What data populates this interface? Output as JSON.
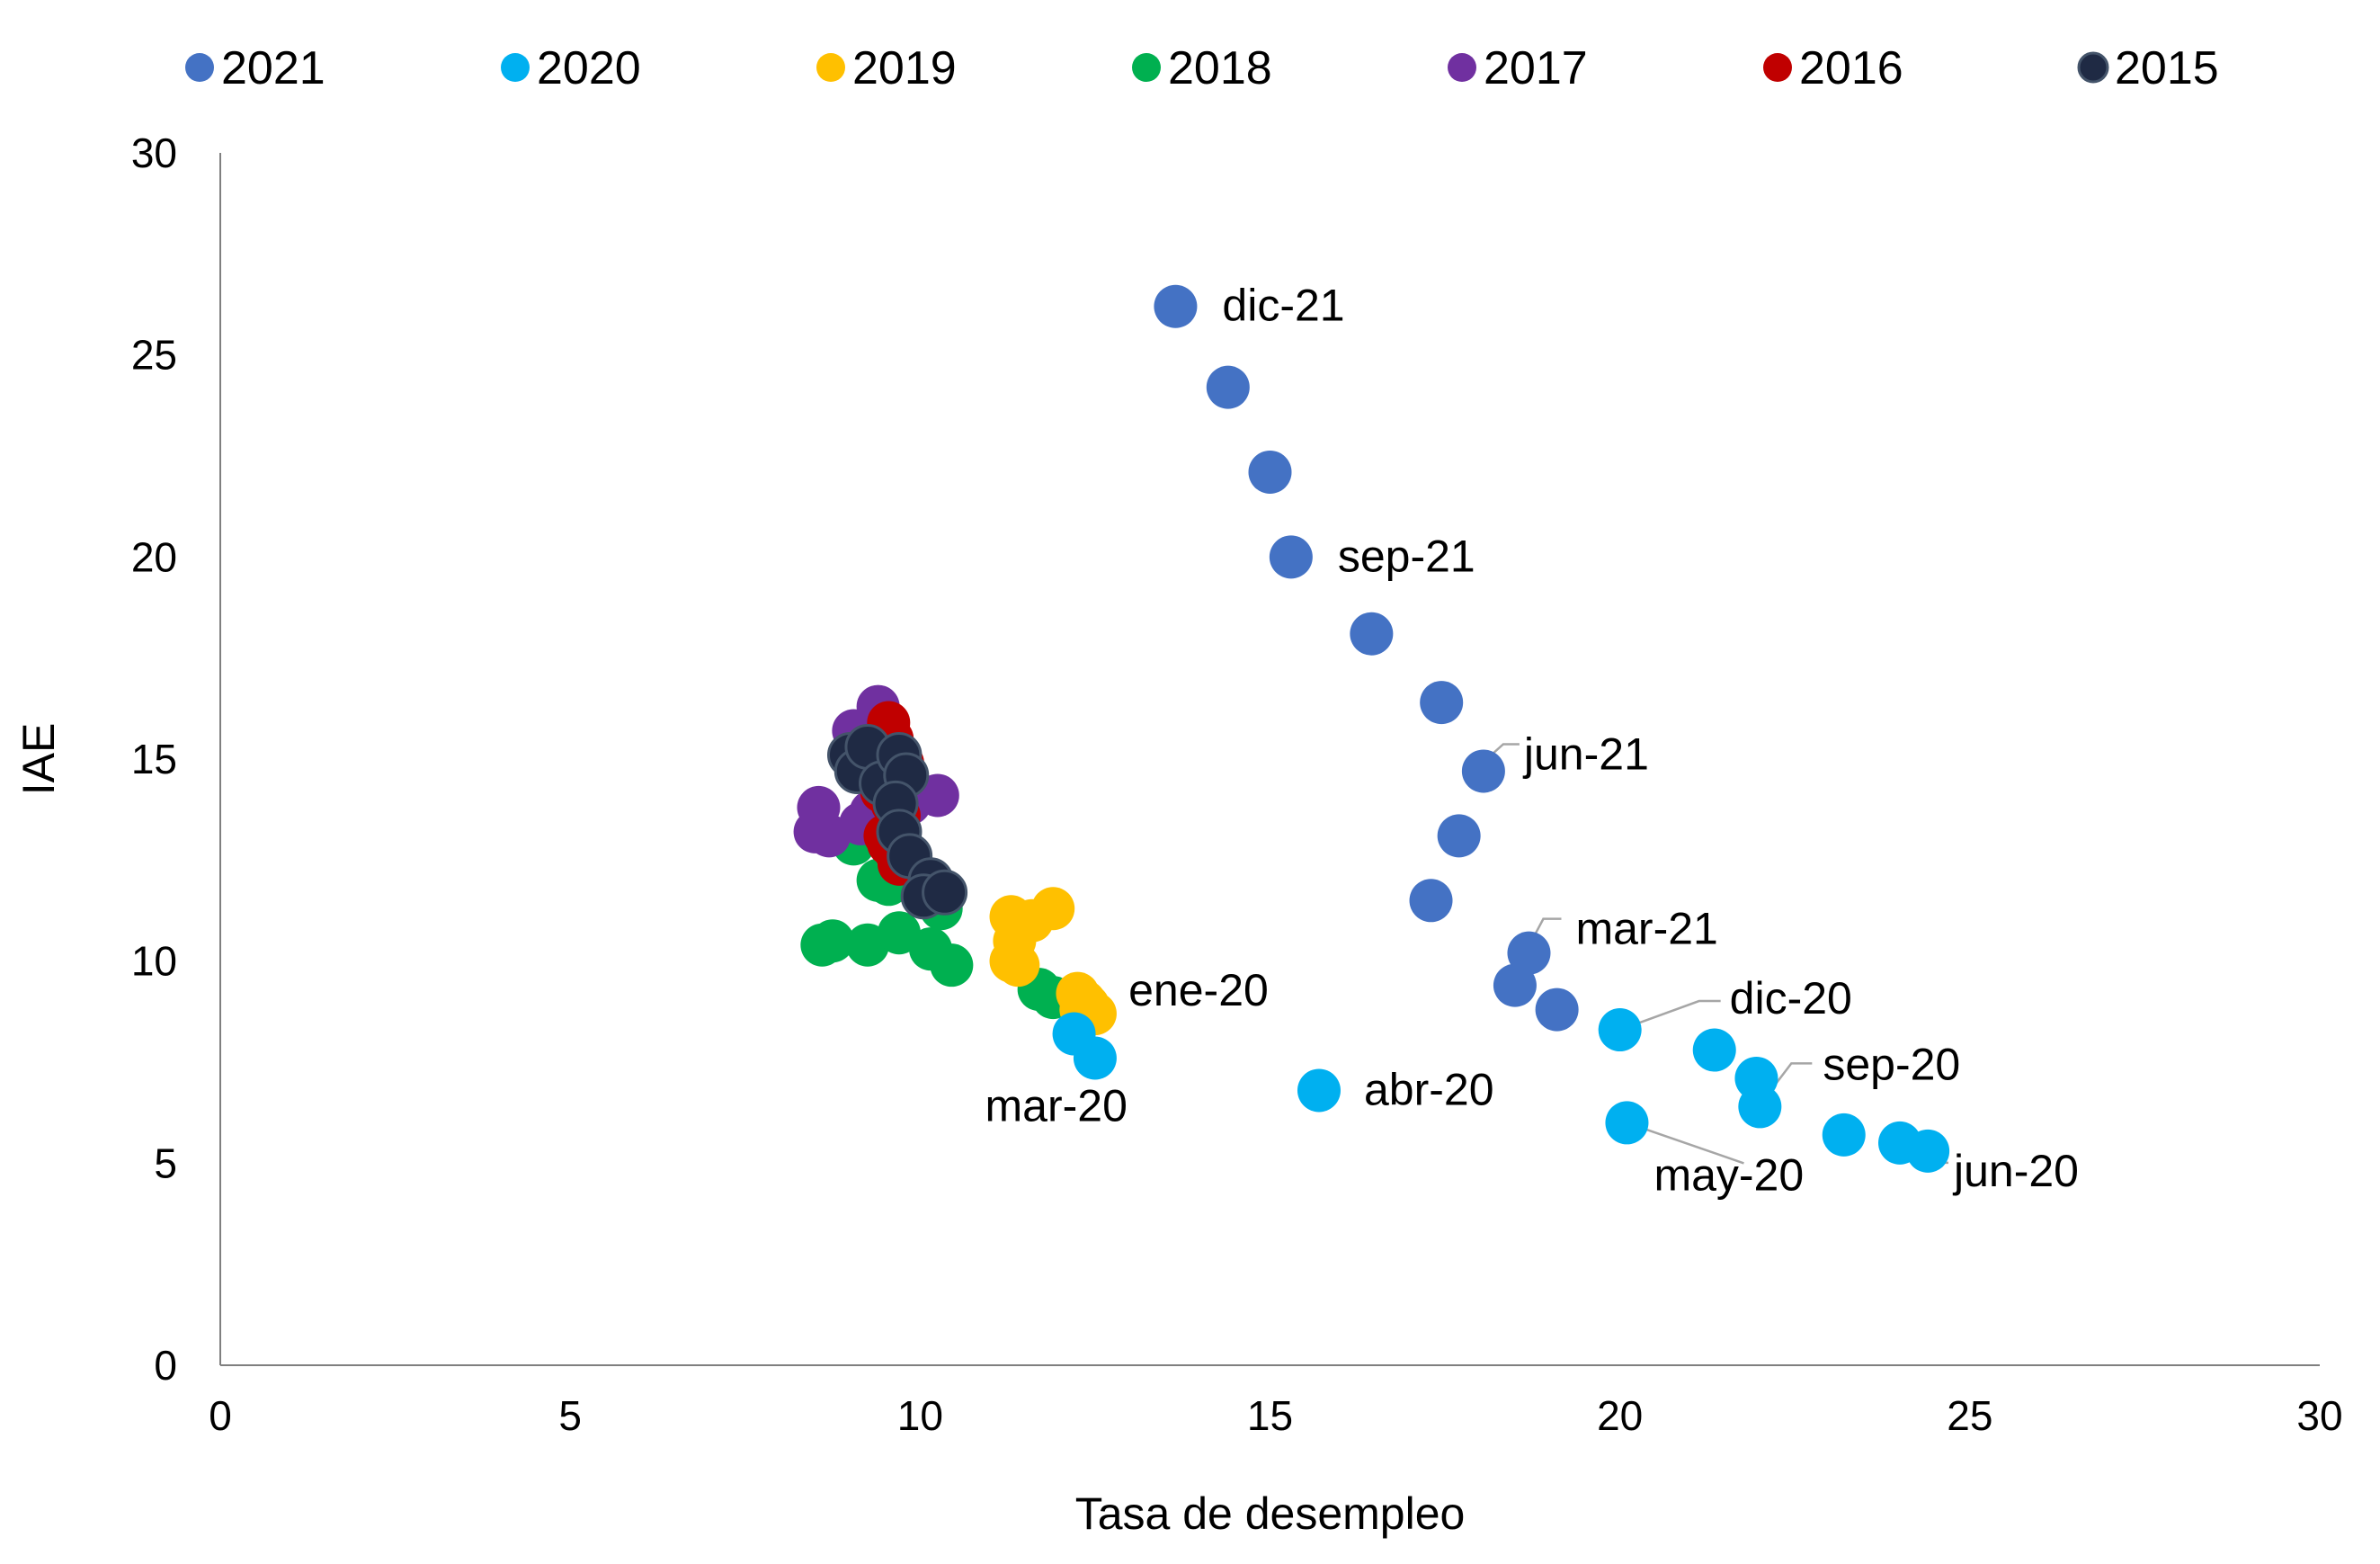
{
  "chart_data": {
    "type": "scatter",
    "xlabel": "Tasa de desempleo",
    "ylabel": "IAE",
    "xlim": [
      0,
      30
    ],
    "ylim": [
      0,
      30
    ],
    "x_ticks": [
      "0",
      "5",
      "10",
      "15",
      "20",
      "25",
      "30"
    ],
    "y_ticks": [
      "0",
      "5",
      "10",
      "15",
      "20",
      "25",
      "30"
    ],
    "grid": false,
    "legend_position": "top",
    "series": [
      {
        "name": "2021",
        "color": "#4472C4",
        "points": [
          {
            "x": 18.5,
            "y": 9.4
          },
          {
            "x": 18.7,
            "y": 10.2
          },
          {
            "x": 19.1,
            "y": 8.8
          },
          {
            "x": 17.3,
            "y": 11.5
          },
          {
            "x": 18.05,
            "y": 14.7
          },
          {
            "x": 17.7,
            "y": 13.1
          },
          {
            "x": 17.45,
            "y": 16.4
          },
          {
            "x": 16.45,
            "y": 18.1
          },
          {
            "x": 15.3,
            "y": 20.0
          },
          {
            "x": 15.0,
            "y": 22.1
          },
          {
            "x": 14.4,
            "y": 24.2
          },
          {
            "x": 13.65,
            "y": 26.2
          }
        ]
      },
      {
        "name": "2020",
        "color": "#00B0F0",
        "points": [
          {
            "x": 12.2,
            "y": 8.2
          },
          {
            "x": 12.5,
            "y": 7.6
          },
          {
            "x": 15.7,
            "y": 6.8
          },
          {
            "x": 20.1,
            "y": 6.0
          },
          {
            "x": 24.4,
            "y": 5.3
          },
          {
            "x": 24.0,
            "y": 5.5
          },
          {
            "x": 23.2,
            "y": 5.7
          },
          {
            "x": 22.0,
            "y": 6.4
          },
          {
            "x": 21.95,
            "y": 7.1
          },
          {
            "x": 21.35,
            "y": 7.8
          },
          {
            "x": 20.0,
            "y": 8.3
          }
        ]
      },
      {
        "name": "2019",
        "color": "#FFC000",
        "points": [
          {
            "x": 11.3,
            "y": 10.0
          },
          {
            "x": 11.4,
            "y": 9.9
          },
          {
            "x": 11.35,
            "y": 10.5
          },
          {
            "x": 11.3,
            "y": 11.1
          },
          {
            "x": 11.6,
            "y": 11.0
          },
          {
            "x": 11.9,
            "y": 11.3
          },
          {
            "x": 12.25,
            "y": 9.2
          },
          {
            "x": 12.4,
            "y": 8.9
          },
          {
            "x": 12.5,
            "y": 8.7
          },
          {
            "x": 12.3,
            "y": 8.8
          },
          {
            "x": 12.35,
            "y": 9.0
          }
        ]
      },
      {
        "name": "2018",
        "color": "#00B050",
        "points": [
          {
            "x": 8.75,
            "y": 10.5
          },
          {
            "x": 8.6,
            "y": 10.4
          },
          {
            "x": 9.25,
            "y": 10.4
          },
          {
            "x": 9.7,
            "y": 10.7
          },
          {
            "x": 10.15,
            "y": 10.3
          },
          {
            "x": 10.45,
            "y": 9.9
          },
          {
            "x": 11.7,
            "y": 9.3
          },
          {
            "x": 11.9,
            "y": 9.1
          },
          {
            "x": 9.05,
            "y": 12.9
          },
          {
            "x": 9.4,
            "y": 12.0
          },
          {
            "x": 10.3,
            "y": 11.3
          },
          {
            "x": 9.55,
            "y": 11.9
          }
        ]
      },
      {
        "name": "2017",
        "color": "#7030A0",
        "points": [
          {
            "x": 8.5,
            "y": 13.2
          },
          {
            "x": 8.7,
            "y": 13.1
          },
          {
            "x": 8.55,
            "y": 13.8
          },
          {
            "x": 9.05,
            "y": 15.7
          },
          {
            "x": 9.4,
            "y": 16.3
          },
          {
            "x": 10.25,
            "y": 14.1
          },
          {
            "x": 9.15,
            "y": 13.4
          },
          {
            "x": 9.6,
            "y": 14.5
          },
          {
            "x": 9.3,
            "y": 13.7
          },
          {
            "x": 9.5,
            "y": 15.1
          },
          {
            "x": 9.85,
            "y": 13.9
          },
          {
            "x": 9.2,
            "y": 14.9
          }
        ]
      },
      {
        "name": "2016",
        "color": "#C00000",
        "points": [
          {
            "x": 9.55,
            "y": 15.9
          },
          {
            "x": 9.6,
            "y": 15.5
          },
          {
            "x": 9.4,
            "y": 14.6
          },
          {
            "x": 9.5,
            "y": 13.1
          },
          {
            "x": 9.7,
            "y": 13.6
          },
          {
            "x": 9.65,
            "y": 12.7
          },
          {
            "x": 9.45,
            "y": 14.2
          },
          {
            "x": 9.55,
            "y": 12.9
          },
          {
            "x": 9.75,
            "y": 14.9
          },
          {
            "x": 9.35,
            "y": 15.2
          },
          {
            "x": 9.6,
            "y": 13.9
          },
          {
            "x": 9.7,
            "y": 12.4
          }
        ]
      },
      {
        "name": "2015",
        "color": "#1F2A44",
        "points": [
          {
            "x": 9.0,
            "y": 15.1
          },
          {
            "x": 9.1,
            "y": 14.7
          },
          {
            "x": 9.25,
            "y": 15.3
          },
          {
            "x": 9.45,
            "y": 14.4
          },
          {
            "x": 9.7,
            "y": 15.1
          },
          {
            "x": 9.8,
            "y": 14.6
          },
          {
            "x": 9.65,
            "y": 13.9
          },
          {
            "x": 9.7,
            "y": 13.2
          },
          {
            "x": 9.85,
            "y": 12.6
          },
          {
            "x": 10.15,
            "y": 12.0
          },
          {
            "x": 10.05,
            "y": 11.6
          },
          {
            "x": 10.35,
            "y": 11.7
          }
        ]
      }
    ],
    "annotations": [
      {
        "text": "dic-21",
        "x": 13.65,
        "y": 26.2
      },
      {
        "text": "sep-21",
        "x": 15.3,
        "y": 20.0
      },
      {
        "text": "jun-21",
        "x": 18.05,
        "y": 14.7
      },
      {
        "text": "mar-21",
        "x": 18.7,
        "y": 10.2
      },
      {
        "text": "dic-20",
        "x": 20.0,
        "y": 8.3
      },
      {
        "text": "sep-20",
        "x": 22.0,
        "y": 6.4
      },
      {
        "text": "jun-20",
        "x": 24.0,
        "y": 5.5
      },
      {
        "text": "may-20",
        "x": 20.1,
        "y": 6.0
      },
      {
        "text": "abr-20",
        "x": 15.7,
        "y": 6.8
      },
      {
        "text": "ene-20",
        "x": 12.4,
        "y": 8.9
      },
      {
        "text": "mar-20",
        "x": 12.5,
        "y": 7.6
      }
    ]
  }
}
